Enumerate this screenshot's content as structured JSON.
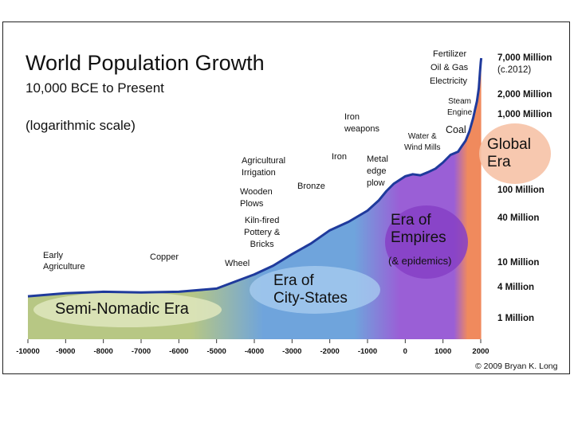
{
  "title": "World Population Growth",
  "subtitle": "10,000 BCE to Present",
  "scale_note": "(logarithmic scale)",
  "copyright": "© 2009 Bryan K. Long",
  "colors": {
    "semi_nomadic": "#b7c784",
    "city_states": "#6fa4dc",
    "empires": "#9a5fd6",
    "global": "#f08a5d",
    "curve": "#1f3a9c"
  },
  "eras": {
    "semi_nomadic": "Semi-Nomadic Era",
    "city_states": "Era of\nCity-States",
    "empires": "Era of\nEmpires",
    "empires_note": "(& epidemics)",
    "global": "Global\nEra"
  },
  "annotations": {
    "early_agriculture_1": "Early",
    "early_agriculture_2": "Agriculture",
    "copper": "Copper",
    "wheel": "Wheel",
    "kiln": "Kiln-fired\nPottery &\nBricks",
    "wooden_plows": "Wooden\nPlows",
    "ag_irrigation_1": "Agricultural",
    "ag_irrigation_2": "Irrigation",
    "bronze": "Bronze",
    "iron": "Iron",
    "iron_weapons": "Iron\nweapons",
    "metal_plow": "Metal\nedge\nplow",
    "water_wind": "Water &\nWind Mills",
    "coal": "Coal",
    "steam": "Steam\nEngine",
    "fertilizer": "Fertilizer",
    "oil_gas": "Oil & Gas",
    "electricity": "Electricity"
  },
  "y_labels": {
    "l7000": "7,000 Million",
    "l7000_note": "(c.2012)",
    "l2000": "2,000 Million",
    "l1000": "1,000 Million",
    "l100": "100 Million",
    "l40": "40 Million",
    "l10": "10 Million",
    "l4": "4 Million",
    "l1": "1 Million"
  },
  "chart_data": {
    "type": "area",
    "title": "World Population Growth",
    "subtitle": "10,000 BCE to Present",
    "y_scale": "log",
    "x_ticks": [
      "-10000",
      "-9000",
      "-8000",
      "-7000",
      "-6000",
      "-5000",
      "-4000",
      "-3000",
      "-2000",
      "-1000",
      "0",
      "1000",
      "2000"
    ],
    "xlim": [
      -10000,
      2012
    ],
    "series": [
      {
        "x": [
          -10000,
          -9000,
          -8000,
          -7000,
          -6000,
          -5000,
          -4500,
          -4000,
          -3500,
          -3000,
          -2500,
          -2000,
          -1500,
          -1000,
          -700,
          -500,
          -300,
          0,
          200,
          400,
          600,
          800,
          1000,
          1200,
          1400,
          1500,
          1600,
          1700,
          1800,
          1850,
          1900,
          1950,
          1980,
          2000,
          2012
        ],
        "y": [
          2.7,
          3.1,
          3.3,
          3.2,
          3.3,
          3.8,
          5,
          6.5,
          9,
          13,
          18,
          27,
          35,
          50,
          70,
          95,
          120,
          150,
          160,
          155,
          170,
          190,
          230,
          290,
          320,
          380,
          450,
          600,
          900,
          1200,
          1600,
          2500,
          4400,
          6000,
          7000
        ]
      }
    ],
    "annotations": [
      "Early Agriculture",
      "Copper",
      "Wheel",
      "Kiln-fired Pottery & Bricks",
      "Wooden Plows",
      "Agricultural Irrigation",
      "Bronze",
      "Iron",
      "Iron weapons",
      "Metal edge plow",
      "Water & Wind Mills",
      "Coal",
      "Steam Engine",
      "Fertilizer",
      "Oil & Gas",
      "Electricity"
    ],
    "eras": [
      "Semi-Nomadic Era",
      "Era of City-States",
      "Era of Empires (& epidemics)",
      "Global Era"
    ]
  }
}
